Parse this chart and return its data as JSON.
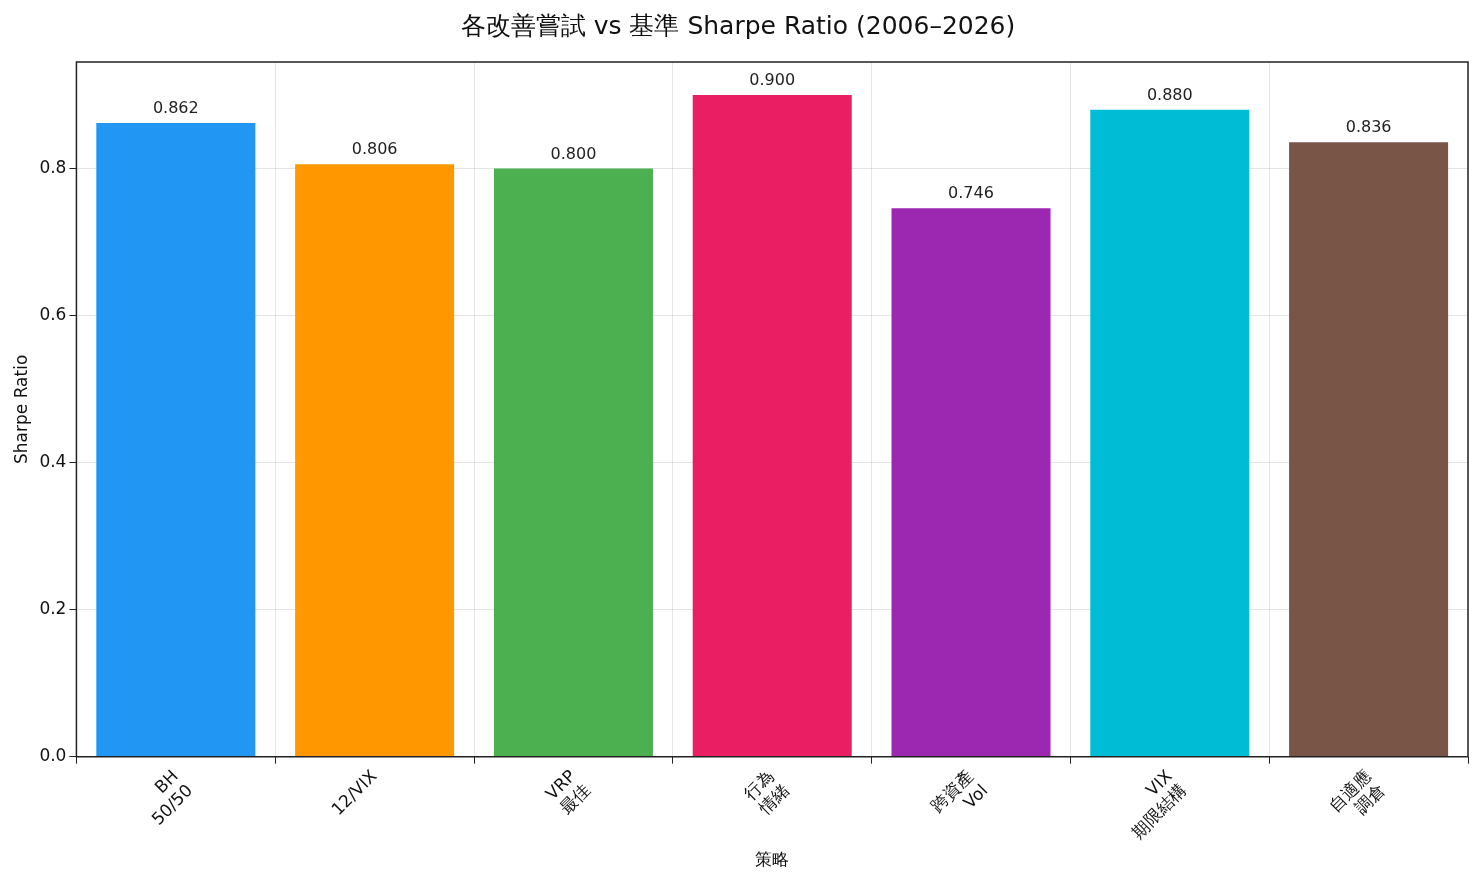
{
  "chart_data": {
    "type": "bar",
    "title": "各改善嘗試 vs 基準 Sharpe Ratio (2006–2026)",
    "xlabel": "策略",
    "ylabel": "Sharpe Ratio",
    "categories": [
      "BH\n50/50",
      "12/VIX",
      "VRP\n最佳",
      "行為\n情緒",
      "跨資產\nVol",
      "VIX\n期限結構",
      "自適應\n調倉"
    ],
    "values": [
      0.862,
      0.806,
      0.8,
      0.9,
      0.746,
      0.88,
      0.836
    ],
    "value_labels": [
      "0.862",
      "0.806",
      "0.800",
      "0.900",
      "0.746",
      "0.880",
      "0.836"
    ],
    "colors": [
      "#2196f3",
      "#ff9800",
      "#4caf50",
      "#e91e63",
      "#9c27b0",
      "#00bcd4",
      "#795548"
    ],
    "ylim": [
      0,
      0.945
    ],
    "yticks": [
      {
        "value": 0,
        "label": "0.0"
      },
      {
        "value": 0.2,
        "label": "0.2"
      },
      {
        "value": 0.4,
        "label": "0.4"
      },
      {
        "value": 0.6,
        "label": "0.6"
      },
      {
        "value": 0.8,
        "label": "0.8"
      }
    ],
    "grid": true,
    "legend": false
  }
}
